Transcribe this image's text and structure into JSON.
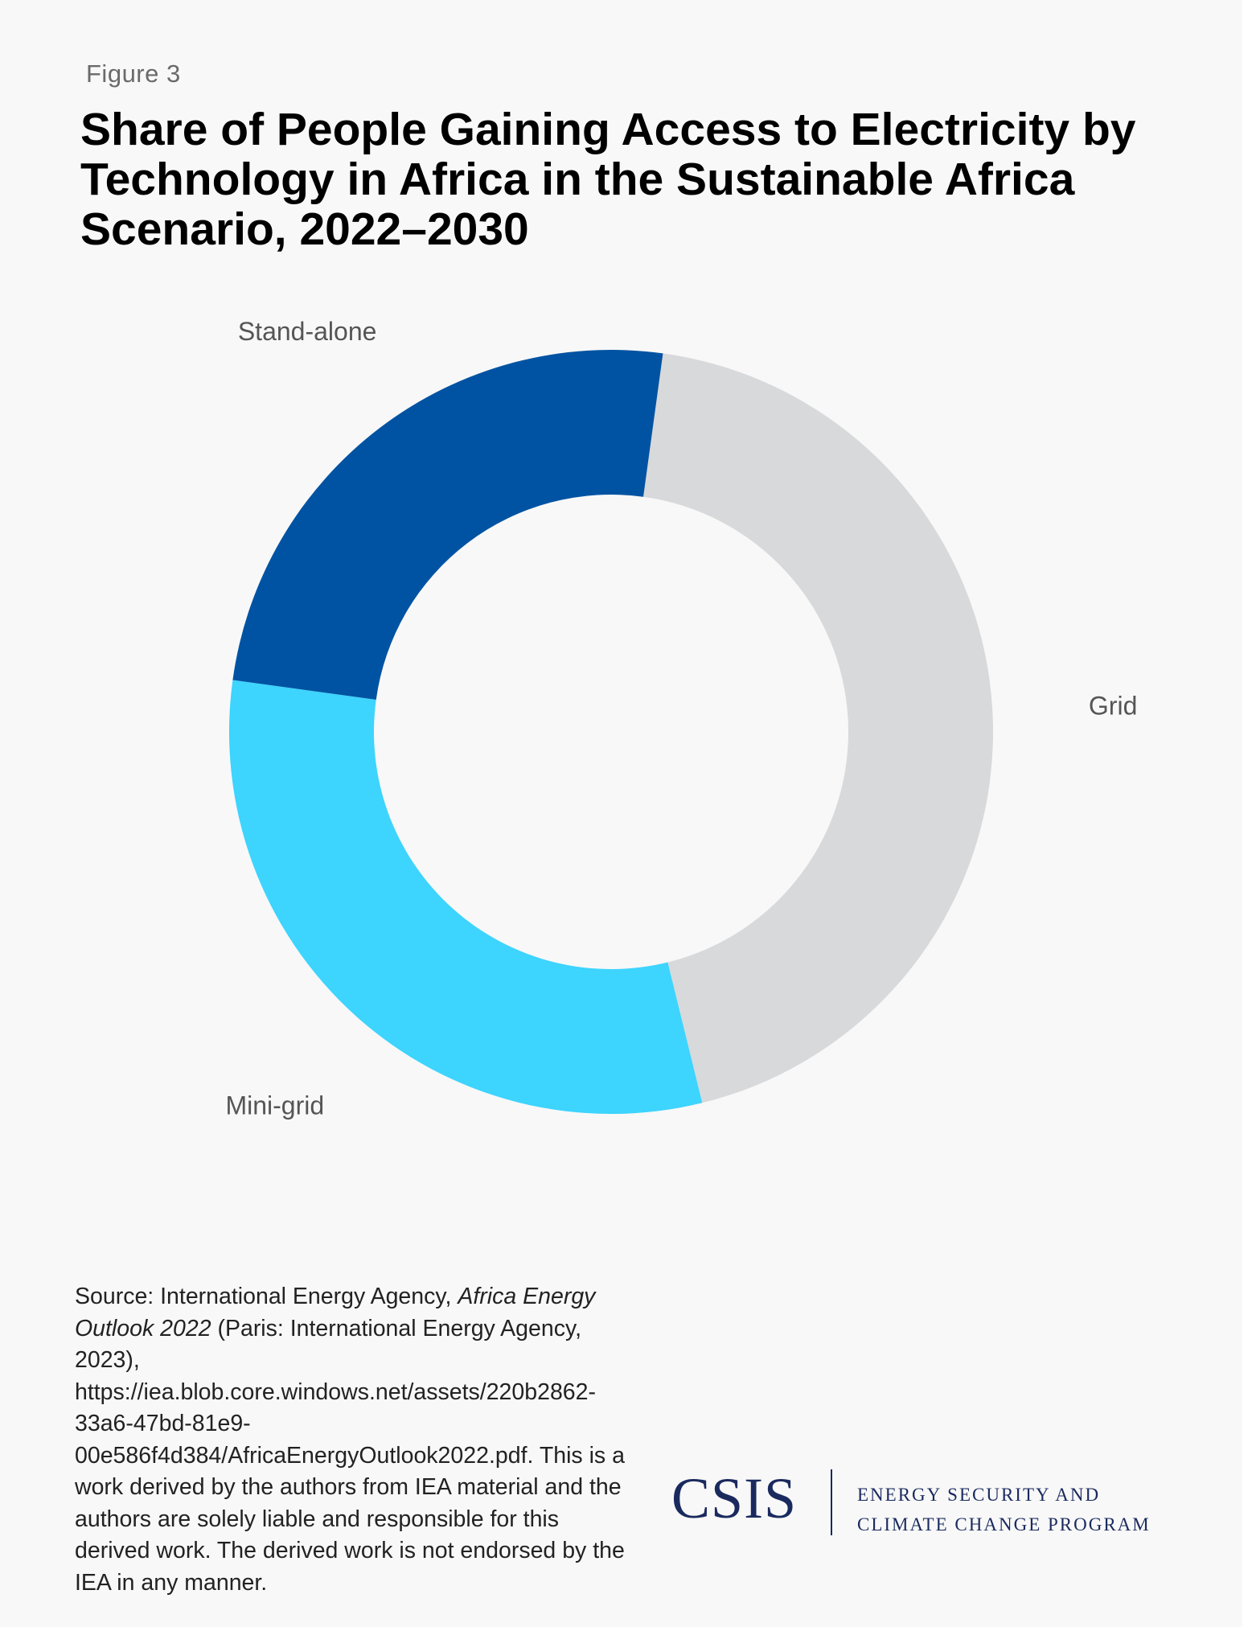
{
  "figure_label": "Figure 3",
  "title": "Share of People Gaining Access to Electricity by Technology in Africa in the Sustainable Africa Scenario, 2022–2030",
  "chart_data": {
    "type": "pie",
    "donut": true,
    "title": "Share of People Gaining Access to Electricity by Technology in Africa in the Sustainable Africa Scenario, 2022–2030",
    "unit": "%",
    "slices": [
      {
        "name": "Grid",
        "value": 44,
        "color": "#d8d9db"
      },
      {
        "name": "Mini-grid",
        "value": 31,
        "color": "#3dd4fe"
      },
      {
        "name": "Stand-alone",
        "value": 25,
        "color": "#0053a2"
      }
    ],
    "start_angle_deg": 7.8,
    "direction": "clockwise",
    "labels_outside": true
  },
  "source": {
    "prefix": "Source: International Energy Agency, ",
    "publication": "Africa Energy Outlook 2022",
    "details": " (Paris: International Energy Agency, 2023), https://iea.blob.core.windows.net/assets/220b2862-33a6-47bd-81e9-00e586f4d384/AfricaEnergyOutlook2022.pdf. This is a work derived by the authors from IEA material and the authors are solely liable and responsible for this derived work. The derived work is not endorsed by the IEA in any manner."
  },
  "logo": {
    "name": "CSIS",
    "program_line1": "ENERGY SECURITY AND",
    "program_line2": "CLIMATE CHANGE PROGRAM"
  }
}
